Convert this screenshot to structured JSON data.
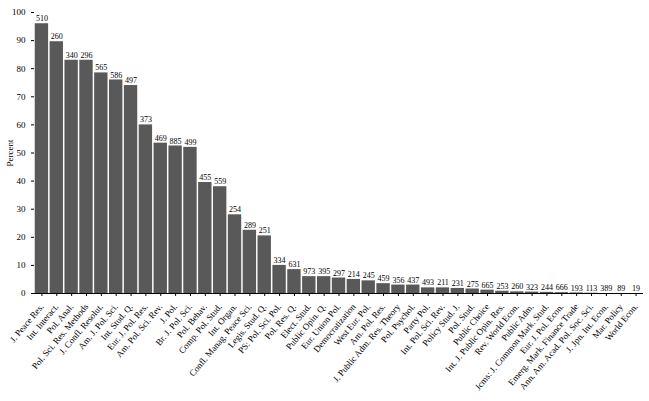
{
  "chart_data": {
    "type": "bar",
    "y_label": "Percent",
    "categories": [
      "J. Peace Res.",
      "Int. Interact.",
      "Pol. Anal.",
      "Pol. Sci. Res. Methods",
      "J. Confl. Resolut.",
      "Am. J. Pol. Sci.",
      "Int. Stud. Q.",
      "Eur. J. Pol. Res.",
      "Am. Pol. Sci. Rev.",
      "J. Pol.",
      "Br. J. Pol. Sci.",
      "Pol. Behav.",
      "Comp. Pol. Stud.",
      "Int. Organ.",
      "Confl. Manag. Peace Sci.",
      "Legis. Stud. Q.",
      "PS: Pol. Sci. Pol.",
      "Pol. Res. Q.",
      "Elect. Stud.",
      "Public Opin. Q.",
      "Eur. Union Pol.",
      "Democratization",
      "West Eur. Pol.",
      "Am. Pol. Res.",
      "J. Public Adm. Res. Theory",
      "Pol. Psychol.",
      "Party Pol.",
      "Int. Pol. Sci. Rev.",
      "Policy Stud. J.",
      "Pol. Stud.",
      "Public Choice",
      "Int. J. Public Opin. Res.",
      "Rev. World Econ.",
      "Public Adm.",
      "Jcms: J. Common Mark. Stud.",
      "Eur. J. Pol. Econ.",
      "Emerg. Mark. Finance Trade",
      "Ann. Am. Acad. Pol. Soc. Sci.",
      "J. Jpn. Int. Econ.",
      "Mar. Policy",
      "World Econ."
    ],
    "values": [
      96,
      89.6,
      83,
      83,
      78.5,
      76,
      74,
      60,
      53.5,
      52.5,
      52,
      39.5,
      38,
      28,
      22.5,
      20.5,
      10,
      8.5,
      6,
      6,
      5.5,
      5,
      4.5,
      3.5,
      3,
      3,
      2,
      2,
      1.8,
      1.6,
      1.2,
      0.8,
      0.6,
      0.5,
      0.4,
      0.3,
      0.2,
      0.1,
      0,
      0,
      0
    ],
    "counts": [
      510,
      260,
      340,
      296,
      565,
      586,
      497,
      373,
      469,
      885,
      499,
      455,
      559,
      254,
      289,
      251,
      334,
      631,
      973,
      395,
      297,
      214,
      245,
      459,
      356,
      437,
      493,
      211,
      231,
      275,
      665,
      253,
      260,
      323,
      244,
      666,
      193,
      113,
      389,
      89,
      19
    ],
    "color": "#595959",
    "ylim": [
      0,
      100
    ],
    "yticks": [
      0,
      10,
      20,
      30,
      40,
      50,
      60,
      70,
      80,
      90,
      100
    ],
    "grid": false
  }
}
